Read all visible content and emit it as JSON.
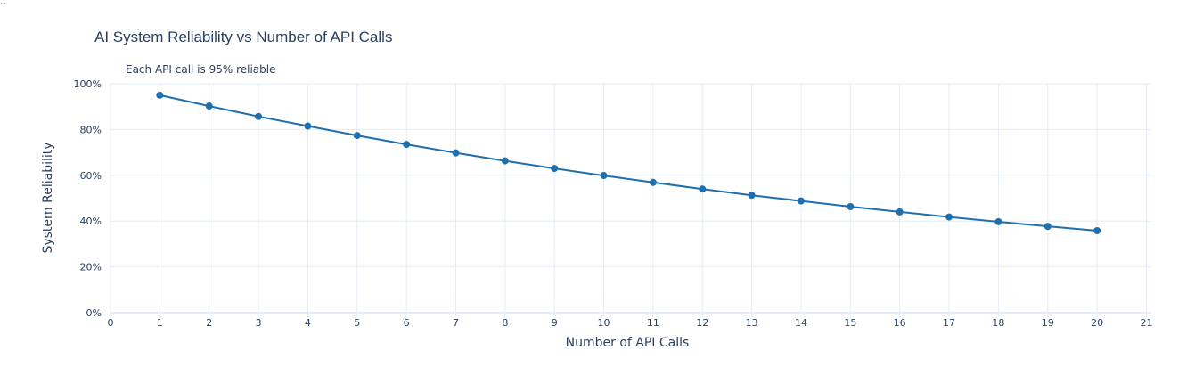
{
  "corner_text": "..",
  "chart_data": {
    "type": "line",
    "title": "AI System Reliability vs Number of API Calls",
    "annotation": "Each API call is 95% reliable",
    "xlabel": "Number of API Calls",
    "ylabel": "System Reliability",
    "xlim": [
      0,
      21.1
    ],
    "ylim": [
      0,
      1.0
    ],
    "x_ticks": [
      0,
      1,
      2,
      3,
      4,
      5,
      6,
      7,
      8,
      9,
      10,
      11,
      12,
      13,
      14,
      15,
      16,
      17,
      18,
      19,
      20,
      21
    ],
    "y_ticks": [
      0,
      0.2,
      0.4,
      0.6,
      0.8,
      1.0
    ],
    "y_tick_labels": [
      "0%",
      "20%",
      "40%",
      "60%",
      "80%",
      "100%"
    ],
    "grid": true,
    "series": [
      {
        "name": "System Reliability",
        "color": "#1f6fae",
        "x": [
          1,
          2,
          3,
          4,
          5,
          6,
          7,
          8,
          9,
          10,
          11,
          12,
          13,
          14,
          15,
          16,
          17,
          18,
          19,
          20
        ],
        "values": [
          0.95,
          0.9025,
          0.857,
          0.815,
          0.774,
          0.735,
          0.698,
          0.663,
          0.63,
          0.599,
          0.569,
          0.54,
          0.513,
          0.488,
          0.463,
          0.44,
          0.418,
          0.397,
          0.377,
          0.358
        ]
      }
    ],
    "colors": {
      "grid": "#e5ecf6",
      "axis_text": "#2a3f5f",
      "zero_line": "#e5ecf6"
    }
  }
}
